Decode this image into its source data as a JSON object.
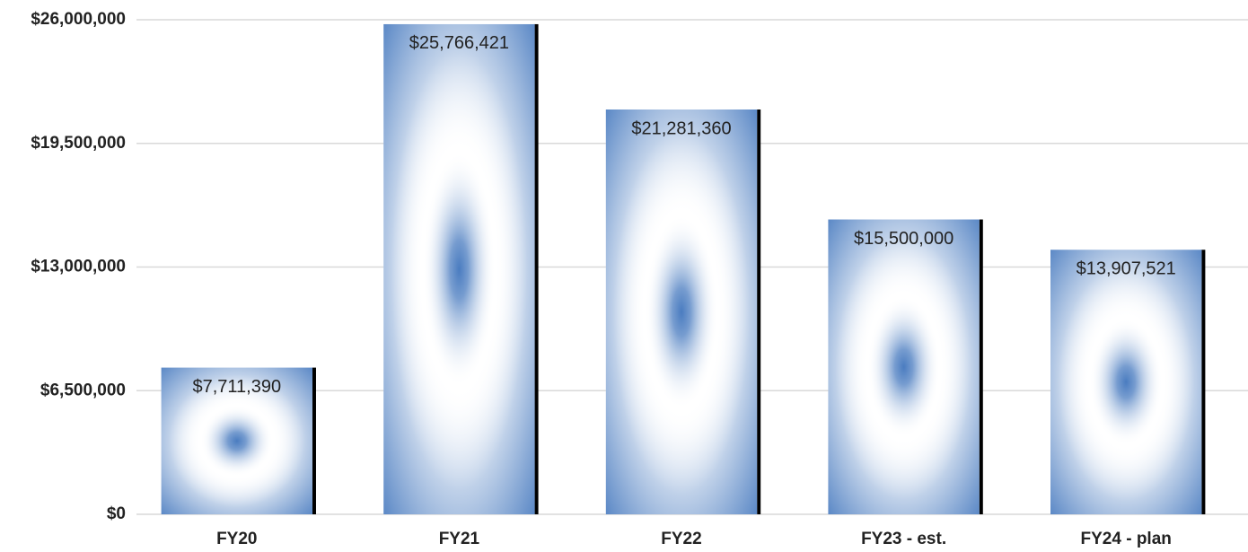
{
  "chart_data": {
    "type": "bar",
    "categories": [
      "FY20",
      "FY21",
      "FY22",
      "FY23 - est.",
      "FY24 - plan"
    ],
    "values": [
      7711390,
      25766421,
      21281360,
      15500000,
      13907521
    ],
    "value_labels": [
      "$7,711,390",
      "$25,766,421",
      "$21,281,360",
      "$15,500,000",
      "$13,907,521"
    ],
    "color": "#4a7cc0",
    "ylim": [
      0,
      26000000
    ],
    "yticks": [
      {
        "value": 0,
        "label": "$0"
      },
      {
        "value": 6500000,
        "label": "$6,500,000"
      },
      {
        "value": 13000000,
        "label": "$13,000,000"
      },
      {
        "value": 19500000,
        "label": "$19,500,000"
      },
      {
        "value": 26000000,
        "label": "$26,000,000"
      }
    ],
    "grid": true
  }
}
